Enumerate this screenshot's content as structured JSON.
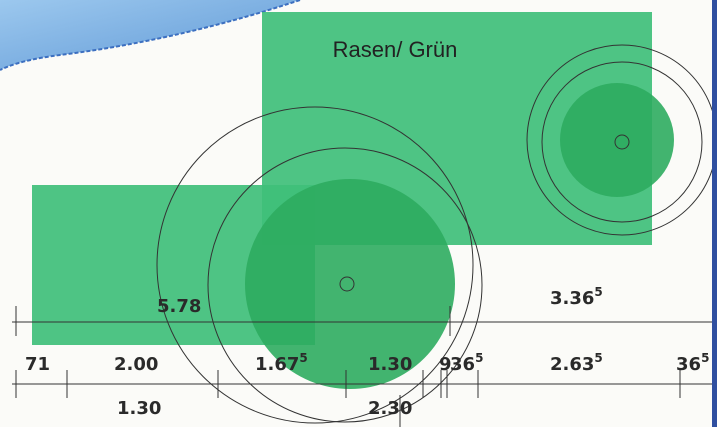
{
  "plan": {
    "area_label": "Rasen/ Grün",
    "colors": {
      "background": "#fbfbf8",
      "lawn": "#3fbf7a",
      "lawn_dark": "#2eac5f",
      "water": "#7fb6e6",
      "water_edge": "#3c6fc0",
      "lines": "#333333"
    }
  },
  "dimensions": {
    "top_row": [
      {
        "id": "dim-5-78",
        "main": "5.78",
        "sup": ""
      },
      {
        "id": "dim-3-36-5",
        "main": "3.36",
        "sup": "5"
      }
    ],
    "middle_row": [
      {
        "id": "dim-71",
        "main": "71",
        "sup": ""
      },
      {
        "id": "dim-2-00",
        "main": "2.00",
        "sup": ""
      },
      {
        "id": "dim-1-67-5",
        "main": "1.67",
        "sup": "5"
      },
      {
        "id": "dim-1-30-a",
        "main": "1.30",
        "sup": ""
      },
      {
        "id": "dim-9",
        "main": "9",
        "sup": ""
      },
      {
        "id": "dim-36-5-a",
        "main": "36",
        "sup": "5"
      },
      {
        "id": "dim-2-63-5",
        "main": "2.63",
        "sup": "5"
      },
      {
        "id": "dim-36-5-b",
        "main": "36",
        "sup": "5"
      }
    ],
    "bottom_row": [
      {
        "id": "dim-1-30-b",
        "main": "1.30",
        "sup": ""
      },
      {
        "id": "dim-2-30",
        "main": "2.30",
        "sup": ""
      }
    ]
  }
}
